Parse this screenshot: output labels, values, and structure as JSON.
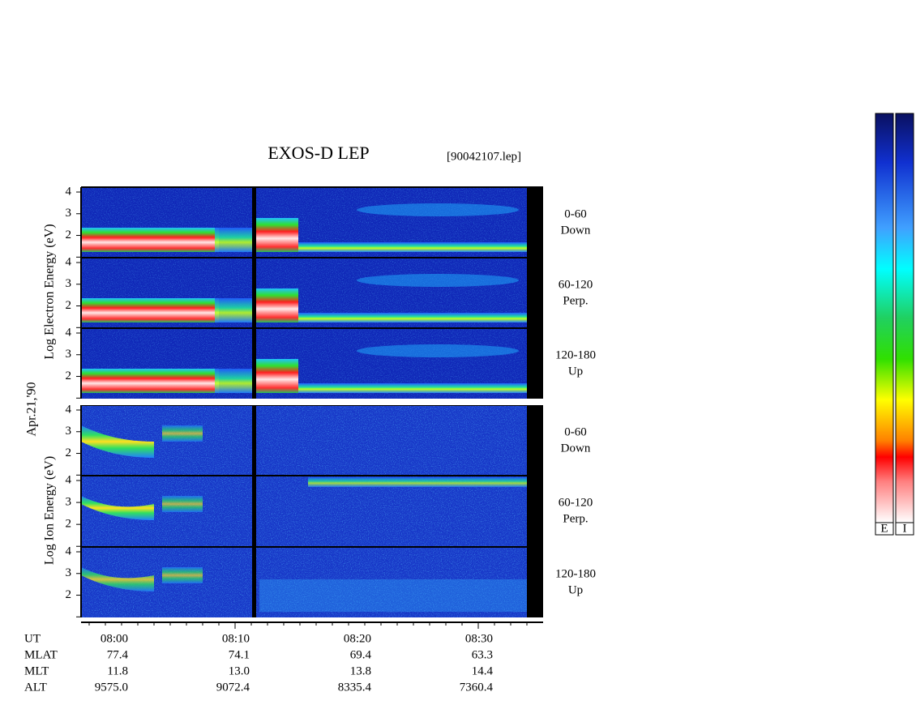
{
  "title": "EXOS-D LEP",
  "file": "[90042107.lep]",
  "date": "Apr.21,'90",
  "electron_label": "Log  Electron  Energy (eV)",
  "ion_label": "Log  Ion  Energy (eV)",
  "energy_ticks": [
    "2",
    "3",
    "4"
  ],
  "panels": [
    {
      "angle": "0-60",
      "direction": "Down"
    },
    {
      "angle": "60-120",
      "direction": "Perp."
    },
    {
      "angle": "120-180",
      "direction": "Up"
    },
    {
      "angle": "0-60",
      "direction": "Down"
    },
    {
      "angle": "60-120",
      "direction": "Perp."
    },
    {
      "angle": "120-180",
      "direction": "Up"
    }
  ],
  "time_axis": {
    "rows": [
      {
        "label": "UT",
        "values": [
          "08:00",
          "08:10",
          "08:20",
          "08:30"
        ]
      },
      {
        "label": "MLAT",
        "values": [
          "77.4",
          "74.1",
          "69.4",
          "63.3"
        ]
      },
      {
        "label": "MLT",
        "values": [
          "11.8",
          "13.0",
          "13.8",
          "14.4"
        ]
      },
      {
        "label": "ALT",
        "values": [
          "9575.0",
          "9072.4",
          "8335.4",
          "7360.4"
        ]
      }
    ]
  },
  "colorbar_labels": [
    "E",
    "I"
  ]
}
